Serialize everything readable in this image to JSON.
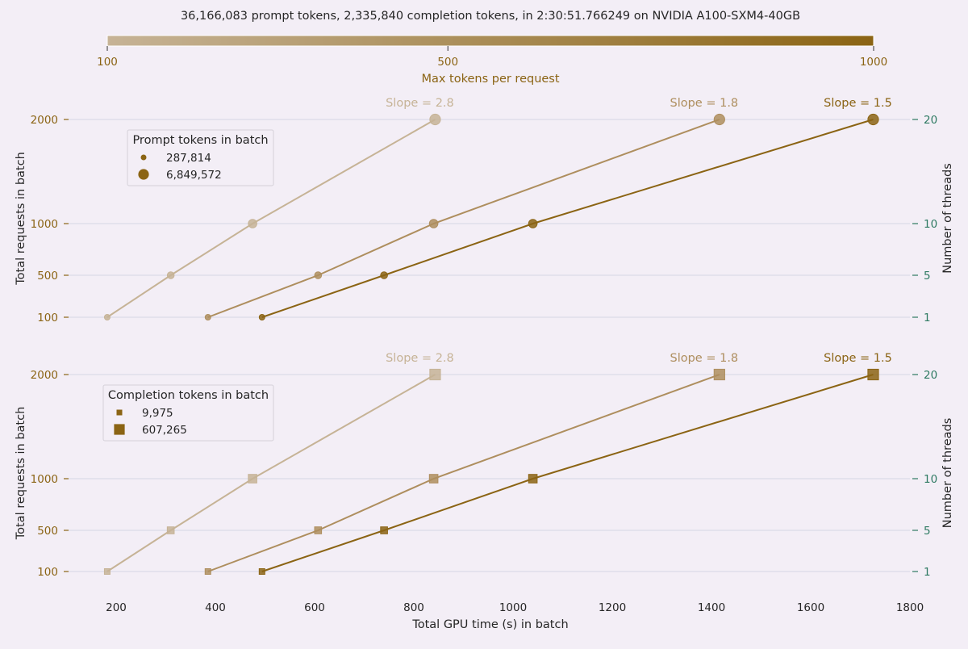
{
  "title": "36,166,083 prompt tokens, 2,335,840 completion tokens, in 2:30:51.766249 on NVIDIA A100-SXM4-40GB",
  "colorbar": {
    "label": "Max tokens per request",
    "ticks": [
      100,
      500,
      1000
    ],
    "tick_labels": [
      "100",
      "500",
      "1000"
    ],
    "range": [
      100,
      1000
    ],
    "color_low": "#c6b396",
    "color_high": "#8b6414"
  },
  "colors": {
    "series_100": "#c6b396",
    "series_500": "#ae8e5e",
    "series_1000": "#8b6414",
    "tick_brown": "#8b6414",
    "tick_green": "#2e7a62",
    "grid": "#dcdce8",
    "background": "#f3eef6"
  },
  "chart_data": [
    {
      "type": "scatter",
      "marker": "circle",
      "ylabel": "Total requests in batch",
      "y2label": "Number of threads",
      "xlim": [
        100,
        1800
      ],
      "y_ticks": [
        100,
        500,
        1000,
        2000
      ],
      "y_tick_labels": [
        "100",
        "500",
        "1000",
        "2000"
      ],
      "y2_tick_labels": [
        "1",
        "5",
        "10",
        "20"
      ],
      "grid": "horizontal",
      "legend": {
        "title": "Prompt tokens in batch",
        "position": "top-left",
        "entries": [
          {
            "label": "287,814",
            "size": "small"
          },
          {
            "label": "6,849,572",
            "size": "large"
          }
        ]
      },
      "series": [
        {
          "max_tokens": 100,
          "slope_label": "Slope = 2.8",
          "x": [
            182,
            310,
            475,
            843
          ],
          "y": [
            100,
            500,
            1000,
            2000
          ],
          "marker_size": [
            3,
            4,
            5,
            6
          ]
        },
        {
          "max_tokens": 500,
          "slope_label": "Slope = 1.8",
          "x": [
            385,
            607,
            840,
            1416
          ],
          "y": [
            100,
            500,
            1000,
            2000
          ],
          "marker_size": [
            3,
            4,
            5,
            6
          ]
        },
        {
          "max_tokens": 1000,
          "slope_label": "Slope = 1.5",
          "x": [
            494,
            740,
            1040,
            1726
          ],
          "y": [
            100,
            500,
            1000,
            2000
          ],
          "marker_size": [
            3,
            4,
            5,
            6
          ]
        }
      ]
    },
    {
      "type": "scatter",
      "marker": "square",
      "ylabel": "Total requests in batch",
      "y2label": "Number of threads",
      "xlabel": "Total GPU time (s) in batch",
      "xlim": [
        100,
        1800
      ],
      "x_ticks": [
        200,
        400,
        600,
        800,
        1000,
        1200,
        1400,
        1600,
        1800
      ],
      "x_tick_labels": [
        "200",
        "400",
        "600",
        "800",
        "1000",
        "1200",
        "1400",
        "1600",
        "1800"
      ],
      "y_ticks": [
        100,
        500,
        1000,
        2000
      ],
      "y_tick_labels": [
        "100",
        "500",
        "1000",
        "2000"
      ],
      "y2_tick_labels": [
        "1",
        "5",
        "10",
        "20"
      ],
      "grid": "horizontal",
      "legend": {
        "title": "Completion tokens in batch",
        "position": "top-left",
        "entries": [
          {
            "label": "9,975",
            "size": "small"
          },
          {
            "label": "607,265",
            "size": "large"
          }
        ]
      },
      "series": [
        {
          "max_tokens": 100,
          "slope_label": "Slope = 2.8",
          "x": [
            182,
            310,
            475,
            843
          ],
          "y": [
            100,
            500,
            1000,
            2000
          ],
          "marker_size": [
            3,
            4,
            5,
            6
          ]
        },
        {
          "max_tokens": 500,
          "slope_label": "Slope = 1.8",
          "x": [
            385,
            607,
            840,
            1416
          ],
          "y": [
            100,
            500,
            1000,
            2000
          ],
          "marker_size": [
            3,
            4,
            5,
            6
          ]
        },
        {
          "max_tokens": 1000,
          "slope_label": "Slope = 1.5",
          "x": [
            494,
            740,
            1040,
            1726
          ],
          "y": [
            100,
            500,
            1000,
            2000
          ],
          "marker_size": [
            3,
            4,
            5,
            6
          ]
        }
      ]
    }
  ]
}
